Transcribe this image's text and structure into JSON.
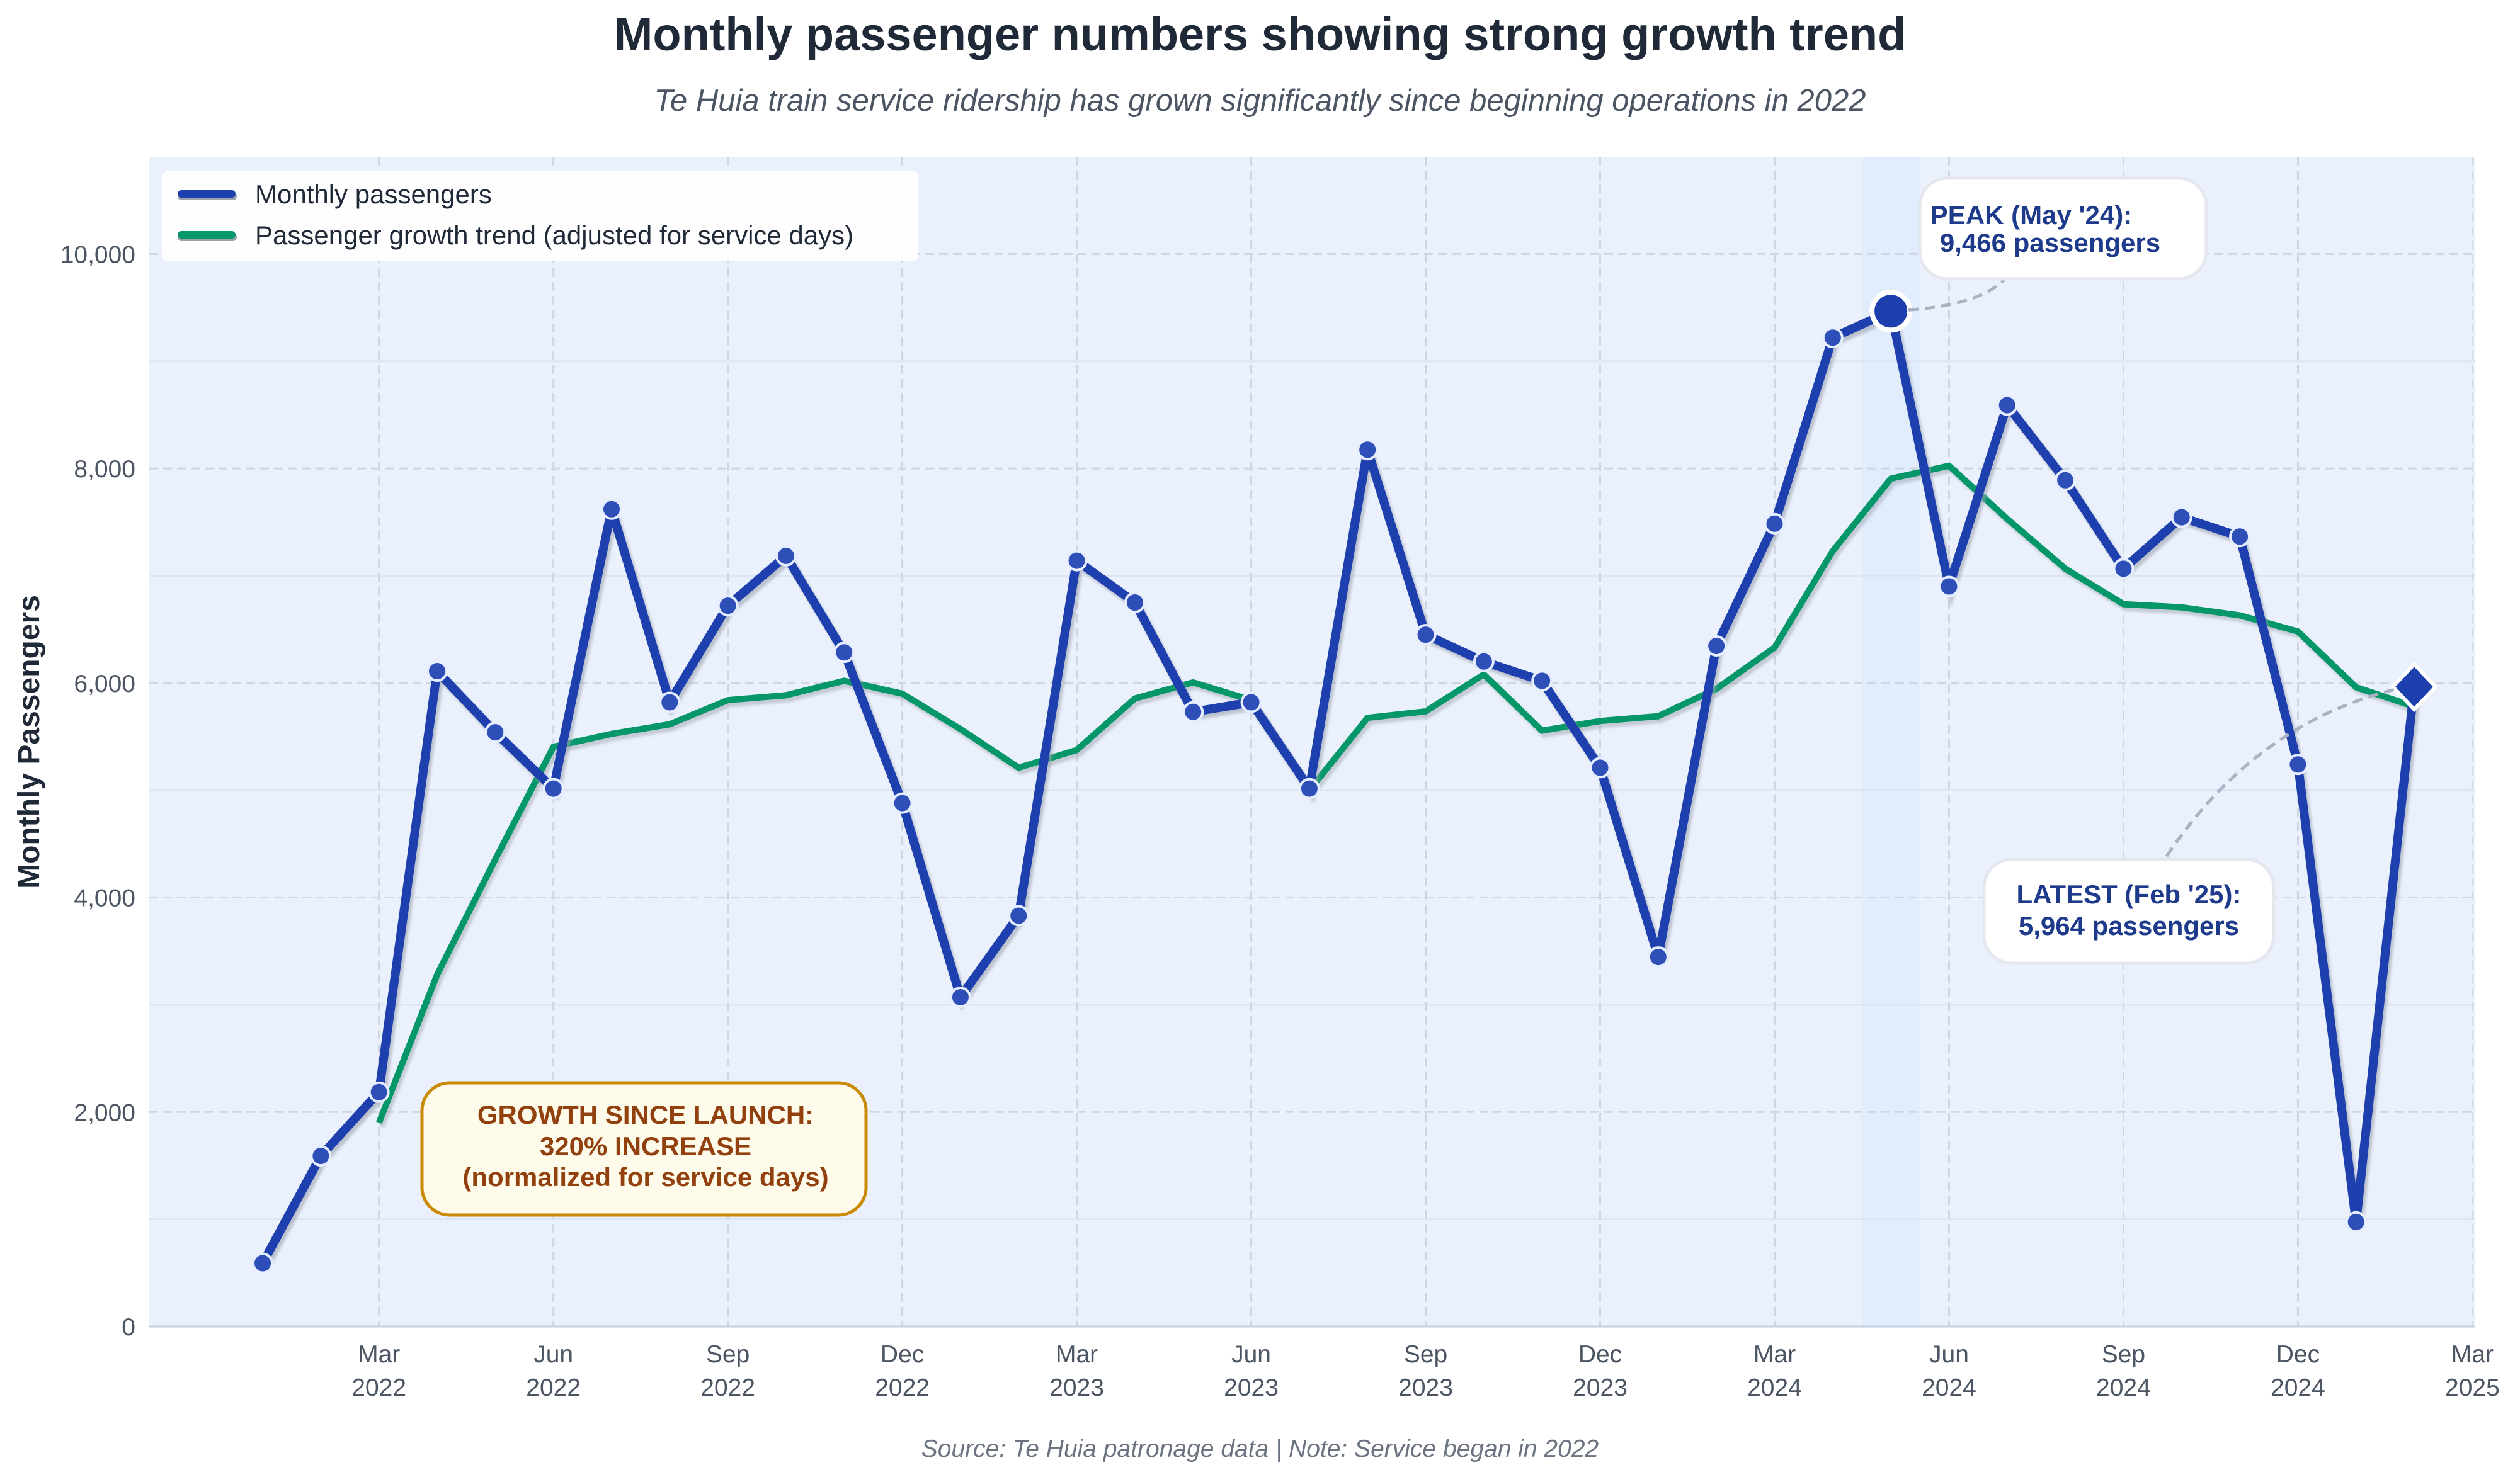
{
  "chart_data": {
    "type": "line",
    "title": "Monthly passenger numbers showing strong growth trend",
    "subtitle": "Te Huia train service ridership has grown significantly since beginning operations in 2022",
    "source": "Source: Te Huia patronage data | Note: Service began in 2022",
    "xlabel": "",
    "ylabel": "Monthly Passengers",
    "ylim": [
      0,
      10900
    ],
    "yticks": [
      0,
      2000,
      4000,
      6000,
      8000,
      10000
    ],
    "ytick_labels": [
      "0",
      "2,000",
      "4,000",
      "6,000",
      "8,000",
      "10,000"
    ],
    "grid": true,
    "legend_position": "top-left",
    "x_start": "2022-01",
    "x_range_months": [
      -1,
      37
    ],
    "xticks": [
      {
        "m": 2,
        "line1": "Mar",
        "line2": "2022"
      },
      {
        "m": 5,
        "line1": "Jun",
        "line2": "2022"
      },
      {
        "m": 8,
        "line1": "Sep",
        "line2": "2022"
      },
      {
        "m": 11,
        "line1": "Dec",
        "line2": "2022"
      },
      {
        "m": 14,
        "line1": "Mar",
        "line2": "2023"
      },
      {
        "m": 17,
        "line1": "Jun",
        "line2": "2023"
      },
      {
        "m": 20,
        "line1": "Sep",
        "line2": "2023"
      },
      {
        "m": 23,
        "line1": "Dec",
        "line2": "2023"
      },
      {
        "m": 26,
        "line1": "Mar",
        "line2": "2024"
      },
      {
        "m": 29,
        "line1": "Jun",
        "line2": "2024"
      },
      {
        "m": 32,
        "line1": "Sep",
        "line2": "2024"
      },
      {
        "m": 35,
        "line1": "Dec",
        "line2": "2024"
      },
      {
        "m": 38,
        "line1": "Mar",
        "line2": "2025"
      }
    ],
    "x": [
      "Jan 2022",
      "Feb 2022",
      "Mar 2022",
      "Apr 2022",
      "May 2022",
      "Jun 2022",
      "Jul 2022",
      "Aug 2022",
      "Sep 2022",
      "Oct 2022",
      "Nov 2022",
      "Dec 2022",
      "Jan 2023",
      "Feb 2023",
      "Mar 2023",
      "Apr 2023",
      "May 2023",
      "Jun 2023",
      "Jul 2023",
      "Aug 2023",
      "Sep 2023",
      "Oct 2023",
      "Nov 2023",
      "Dec 2023",
      "Jan 2024",
      "Feb 2024",
      "Mar 2024",
      "Apr 2024",
      "May 2024",
      "Jun 2024",
      "Jul 2024",
      "Aug 2024",
      "Sep 2024",
      "Oct 2024",
      "Nov 2024",
      "Dec 2024",
      "Jan 2025",
      "Feb 2025"
    ],
    "series": [
      {
        "name": "Monthly passengers",
        "color": "#1e40af",
        "start_index": 0,
        "values": [
          590,
          1590,
          2185,
          6110,
          5540,
          5015,
          7620,
          5820,
          6720,
          7185,
          6285,
          4880,
          3070,
          3830,
          7140,
          6750,
          5730,
          5820,
          5015,
          8175,
          6450,
          6200,
          6020,
          5210,
          3445,
          6345,
          7485,
          9220,
          9466,
          6900,
          8590,
          7890,
          7065,
          7545,
          7365,
          5240,
          975,
          5964
        ]
      },
      {
        "name": "Passenger growth trend (adjusted for service days)",
        "color": "#059669",
        "start_index": 2,
        "values": [
          1900,
          3280,
          4355,
          5405,
          5525,
          5615,
          5840,
          5885,
          6020,
          5900,
          5570,
          5210,
          5375,
          5855,
          6005,
          5840,
          5000,
          5675,
          5735,
          6080,
          5555,
          5645,
          5690,
          5945,
          6330,
          7230,
          7905,
          8025,
          7530,
          7065,
          6735,
          6705,
          6630,
          6480,
          5960,
          5780
        ]
      }
    ],
    "highlight_band": {
      "from_month": 27.5,
      "to_month": 28.5
    },
    "annotations": [
      {
        "id": "peak",
        "line1": "PEAK (May '24):",
        "line2": "9,466 passengers",
        "point_index": 28,
        "value": 9466
      },
      {
        "id": "latest",
        "line1": "LATEST (Feb '25):",
        "line2": "5,964 passengers",
        "point_index": 37,
        "value": 5964
      },
      {
        "id": "growth",
        "line1": "GROWTH SINCE LAUNCH:",
        "line2": "320% INCREASE",
        "line3": "(normalized for service days)"
      }
    ],
    "colors": {
      "plot_bg": "#eaf1fc",
      "grid": "#cfd6e2",
      "axis_text": "#4b5563",
      "annotation_blue": "#1e3a8a",
      "growth_text": "#92400e",
      "growth_border": "#ca8a04",
      "growth_fill": "#fefbeb"
    }
  }
}
